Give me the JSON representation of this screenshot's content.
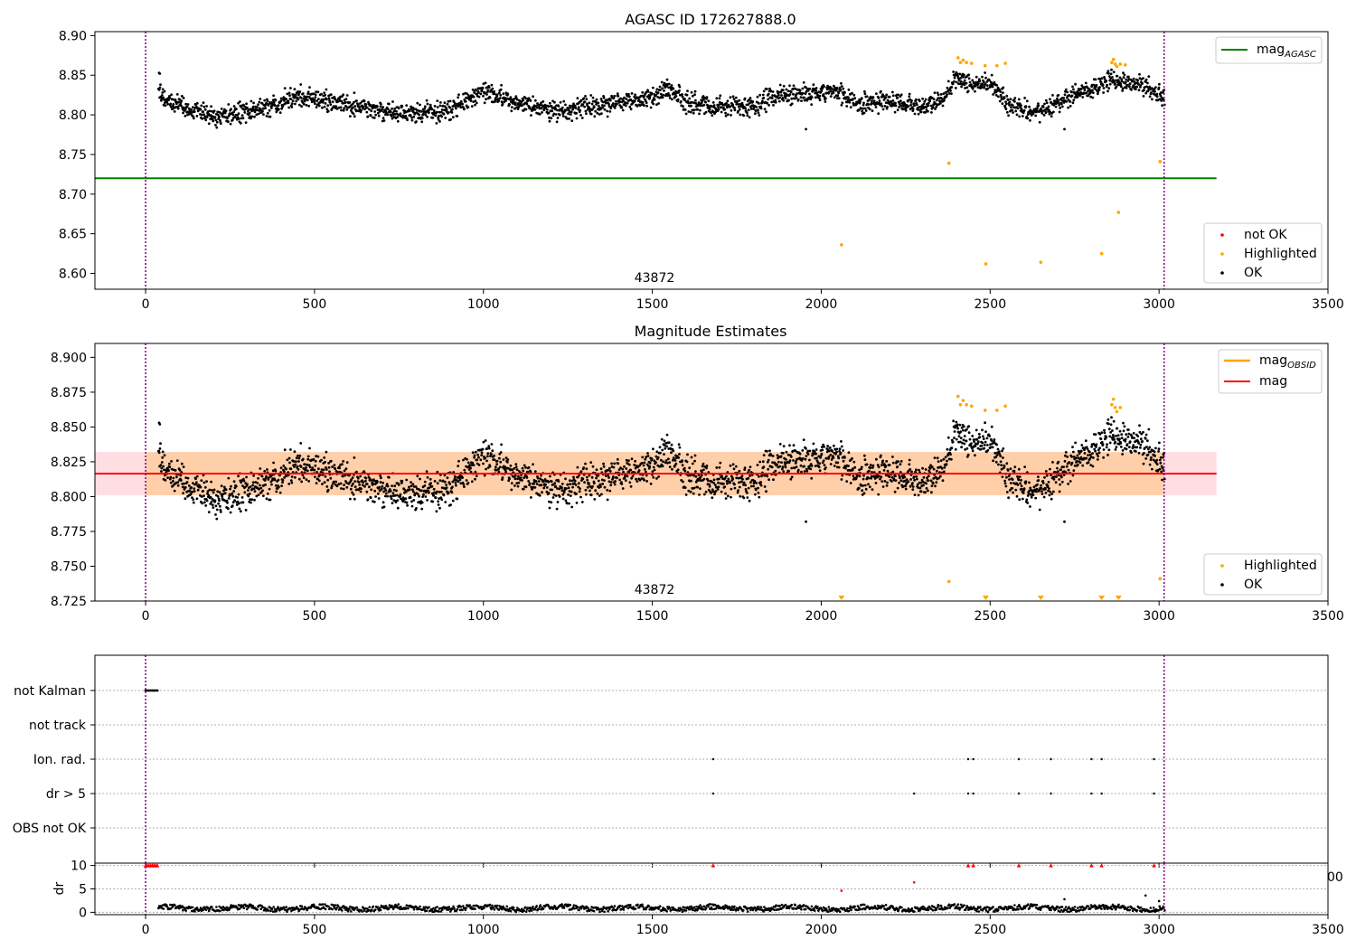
{
  "colors": {
    "ok": "#000000",
    "highlighted": "#ffa500",
    "not_ok": "#ff0000",
    "mag_agasc_line": "#008000",
    "mag_obsid_line": "#ffa500",
    "mag_line": "#ff0000",
    "obs_boundary": "#800080",
    "band_orange": "#ffa500",
    "band_pink": "#ffb6c1",
    "grid": "#b0b0b0"
  },
  "chart_data": [
    {
      "type": "scatter",
      "title": "AGASC ID 172627888.0",
      "obsid_label": "43872",
      "x_ticks": [
        0,
        500,
        1000,
        1500,
        2000,
        2500,
        3000,
        3500
      ],
      "x_tick_labels": [
        "0",
        "500",
        "1000",
        "1500",
        "2000",
        "2500",
        "3000",
        "3500"
      ],
      "y_ticks": [
        8.6,
        8.65,
        8.7,
        8.75,
        8.8,
        8.85,
        8.9
      ],
      "y_tick_labels": [
        "8.60",
        "8.65",
        "8.70",
        "8.75",
        "8.80",
        "8.85",
        "8.90"
      ],
      "xlim": [
        -150,
        3500
      ],
      "ylim": [
        8.58,
        8.905
      ],
      "obs_boundaries": [
        0,
        3015
      ],
      "mag_agasc": 8.72,
      "mag_agasc_range": [
        -150,
        3170
      ],
      "legend_lines": [
        {
          "label": "mag",
          "subscript": "AGASC",
          "color": "#008000"
        }
      ],
      "legend_points": [
        {
          "label": "not OK",
          "color": "#ff0000"
        },
        {
          "label": "Highlighted",
          "color": "#ffa500"
        },
        {
          "label": "OK",
          "color": "#000000"
        }
      ],
      "highlighted_points": [
        [
          2405,
          8.872
        ],
        [
          2412,
          8.866
        ],
        [
          2420,
          8.869
        ],
        [
          2430,
          8.866
        ],
        [
          2445,
          8.865
        ],
        [
          2485,
          8.862
        ],
        [
          2520,
          8.862
        ],
        [
          2545,
          8.865
        ],
        [
          2860,
          8.866
        ],
        [
          2865,
          8.87
        ],
        [
          2870,
          8.864
        ],
        [
          2875,
          8.861
        ],
        [
          2885,
          8.864
        ],
        [
          2900,
          8.863
        ],
        [
          2378,
          8.739
        ],
        [
          3003,
          8.741
        ],
        [
          2060,
          8.636
        ],
        [
          2487,
          8.612
        ],
        [
          2650,
          8.614
        ],
        [
          2830,
          8.625
        ],
        [
          2880,
          8.677
        ]
      ],
      "ok_trend": [
        [
          40,
          8.826
        ],
        [
          100,
          8.812
        ],
        [
          200,
          8.797
        ],
        [
          300,
          8.803
        ],
        [
          400,
          8.815
        ],
        [
          450,
          8.824
        ],
        [
          500,
          8.822
        ],
        [
          600,
          8.812
        ],
        [
          700,
          8.804
        ],
        [
          800,
          8.804
        ],
        [
          900,
          8.806
        ],
        [
          1000,
          8.83
        ],
        [
          1050,
          8.822
        ],
        [
          1100,
          8.815
        ],
        [
          1200,
          8.806
        ],
        [
          1300,
          8.808
        ],
        [
          1400,
          8.818
        ],
        [
          1500,
          8.822
        ],
        [
          1550,
          8.834
        ],
        [
          1600,
          8.815
        ],
        [
          1700,
          8.81
        ],
        [
          1750,
          8.81
        ],
        [
          1800,
          8.808
        ],
        [
          1850,
          8.822
        ],
        [
          1900,
          8.826
        ],
        [
          2000,
          8.828
        ],
        [
          2050,
          8.83
        ],
        [
          2100,
          8.815
        ],
        [
          2200,
          8.818
        ],
        [
          2300,
          8.812
        ],
        [
          2350,
          8.814
        ],
        [
          2400,
          8.845
        ],
        [
          2450,
          8.838
        ],
        [
          2500,
          8.84
        ],
        [
          2550,
          8.815
        ],
        [
          2600,
          8.805
        ],
        [
          2650,
          8.805
        ],
        [
          2700,
          8.815
        ],
        [
          2750,
          8.824
        ],
        [
          2800,
          8.83
        ],
        [
          2850,
          8.845
        ],
        [
          2900,
          8.842
        ],
        [
          2950,
          8.838
        ],
        [
          3015,
          8.82
        ]
      ]
    },
    {
      "type": "scatter",
      "title": "Magnitude Estimates",
      "obsid_label": "43872",
      "x_ticks": [
        0,
        500,
        1000,
        1500,
        2000,
        2500,
        3000,
        3500
      ],
      "x_tick_labels": [
        "0",
        "500",
        "1000",
        "1500",
        "2000",
        "2500",
        "3000",
        "3500"
      ],
      "y_ticks": [
        8.725,
        8.75,
        8.775,
        8.8,
        8.825,
        8.85,
        8.875,
        8.9
      ],
      "y_tick_labels": [
        "8.725",
        "8.750",
        "8.775",
        "8.800",
        "8.825",
        "8.850",
        "8.875",
        "8.900"
      ],
      "xlim": [
        -150,
        3500
      ],
      "ylim": [
        8.725,
        8.91
      ],
      "obs_boundaries": [
        0,
        3015
      ],
      "mag": 8.8165,
      "mag_range": [
        -150,
        3170
      ],
      "band": [
        8.801,
        8.832
      ],
      "legend_lines": [
        {
          "label": "mag",
          "subscript": "OBSID",
          "color": "#ffa500"
        },
        {
          "label": "mag",
          "subscript": "",
          "color": "#ff0000"
        }
      ],
      "legend_points": [
        {
          "label": "Highlighted",
          "color": "#ffa500"
        },
        {
          "label": "OK",
          "color": "#000000"
        }
      ],
      "highlighted_points": [
        [
          2405,
          8.872
        ],
        [
          2412,
          8.866
        ],
        [
          2420,
          8.869
        ],
        [
          2430,
          8.866
        ],
        [
          2445,
          8.865
        ],
        [
          2485,
          8.862
        ],
        [
          2520,
          8.862
        ],
        [
          2545,
          8.865
        ],
        [
          2860,
          8.866
        ],
        [
          2865,
          8.87
        ],
        [
          2870,
          8.864
        ],
        [
          2875,
          8.861
        ],
        [
          2885,
          8.864
        ],
        [
          2378,
          8.739
        ],
        [
          3003,
          8.741
        ]
      ],
      "below_range_x": [
        2060,
        2487,
        2650,
        2830,
        2880
      ]
    },
    {
      "type": "scatter",
      "flag_rows": [
        "not Kalman",
        "not track",
        "Ion. rad.",
        "dr > 5",
        "OBS not OK"
      ],
      "not_kalman_x": [
        0,
        5,
        10,
        15,
        20,
        25,
        30,
        35
      ],
      "ion_rad_x": [
        1680,
        2435,
        2450,
        2585,
        2680,
        2800,
        2830,
        2985
      ],
      "dr5_x": [
        1680,
        2275,
        2435,
        2450,
        2585,
        2680,
        2800,
        2830,
        2985
      ],
      "x_ticks": [
        0,
        500,
        1000,
        1500,
        2000,
        2500,
        3000,
        3500
      ],
      "xlim": [
        -150,
        3500
      ],
      "obs_boundaries": [
        0,
        3015
      ]
    },
    {
      "type": "scatter",
      "ylabel": "dr",
      "y_ticks": [
        0,
        5,
        10
      ],
      "y_tick_labels": [
        "0",
        "5",
        "10"
      ],
      "x_ticks": [
        0,
        500,
        1000,
        1500,
        2000,
        2500,
        3000,
        3500
      ],
      "x_tick_labels": [
        "0",
        "500",
        "1000",
        "1500",
        "2000",
        "2500",
        "3000",
        "3500"
      ],
      "xlim": [
        -150,
        3500
      ],
      "ylim": [
        -0.5,
        10.5
      ],
      "obs_boundaries": [
        0,
        3015
      ],
      "clipped_x": [
        0,
        5,
        10,
        15,
        20,
        25,
        30,
        35,
        1680,
        2435,
        2450,
        2585,
        2680,
        2800,
        2830,
        2985
      ],
      "outliers": [
        [
          2060,
          4.6
        ],
        [
          2275,
          6.4
        ],
        [
          2720,
          2.8
        ],
        [
          2960,
          3.6
        ],
        [
          3000,
          2.4
        ]
      ],
      "stray_label": "00"
    }
  ]
}
